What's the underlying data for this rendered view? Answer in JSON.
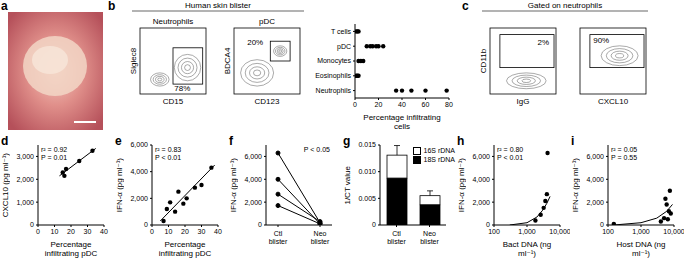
{
  "chart_data": [
    {
      "panel": "a",
      "type": "image"
    },
    {
      "panel": "b",
      "type": "flow_cytometry",
      "title": "Human skin blister",
      "plots": [
        {
          "title": "Neutrophils",
          "x_label": "CD15",
          "y_label": "Siglec8",
          "gate_label": "78%"
        },
        {
          "title": "pDC",
          "x_label": "CD123",
          "y_label": "BDCA4",
          "gate_label": "20%"
        }
      ]
    },
    {
      "type": "dot",
      "categories": [
        "T cells",
        "pDC",
        "Monocytes",
        "Eosinophils",
        "Neutrophils"
      ],
      "values": [
        [
          1,
          2,
          3
        ],
        [
          10,
          13,
          15,
          18,
          20,
          24
        ],
        [
          3,
          5,
          7
        ],
        [
          1,
          2,
          3
        ],
        [
          35,
          40,
          48,
          60,
          78
        ]
      ],
      "x_label": "Percentage infiltrating cells",
      "xlim": [
        0,
        80
      ],
      "xticks": [
        0,
        20,
        40,
        60,
        80
      ],
      "color": "#000000"
    },
    {
      "panel": "c",
      "type": "flow_cytometry",
      "title": "Gated on neutrophils",
      "plots": [
        {
          "x_label": "IgG",
          "y_label": "CD11b",
          "gate_label": "2%"
        },
        {
          "x_label": "CXCL10",
          "gate_label": "90%"
        }
      ]
    },
    {
      "panel": "d",
      "type": "scatter",
      "x_label": "Percentage infiltrating pDC",
      "y_label": "CXCL10 (pg ml⁻¹)",
      "x": [
        15,
        16,
        17,
        25,
        33
      ],
      "values": [
        2300,
        2150,
        2450,
        2800,
        3250
      ],
      "fit": {
        "x": [
          13,
          35
        ],
        "values": [
          2150,
          3350
        ]
      },
      "annotations": [
        "r² = 0.92",
        "P = 0.01"
      ],
      "xlim": [
        0,
        40
      ],
      "xticks": [
        0,
        10,
        20,
        30,
        40
      ],
      "ylim": [
        0,
        3500
      ],
      "yticks": [
        0,
        {
          "value": 1000,
          "label": "1,000"
        },
        {
          "value": 2000,
          "label": "2,000"
        },
        {
          "value": 3000,
          "label": "3,000"
        }
      ],
      "color": "#000000"
    },
    {
      "panel": "e",
      "type": "scatter",
      "x_label": "Percentage infiltrating pDC",
      "y_label": "IFN-α (pg ml⁻¹)",
      "x": [
        7,
        9,
        11,
        14,
        16,
        19,
        21,
        26,
        30,
        36
      ],
      "values": [
        300,
        1200,
        1700,
        1000,
        2500,
        1600,
        2000,
        2800,
        3000,
        4300
      ],
      "fit": {
        "x": [
          5,
          38
        ],
        "values": [
          300,
          4500
        ]
      },
      "annotations": [
        "r² = 0.83",
        "P < 0.01"
      ],
      "xlim": [
        0,
        40
      ],
      "xticks": [
        0,
        10,
        20,
        30,
        40
      ],
      "ylim": [
        0,
        6000
      ],
      "yticks": [
        0,
        {
          "value": 2000,
          "label": "2,000"
        },
        {
          "value": 4000,
          "label": "4,000"
        },
        {
          "value": 6000,
          "label": "6,000"
        }
      ],
      "color": "#000000"
    },
    {
      "panel": "f",
      "type": "line",
      "categories": [
        "Ctl blister",
        "Neo blister"
      ],
      "y_label": "IFN-α (pg ml⁻¹)",
      "series": [
        {
          "values": [
            6300,
            200
          ]
        },
        {
          "values": [
            4000,
            100
          ]
        },
        {
          "values": [
            2700,
            300
          ]
        },
        {
          "values": [
            1700,
            100
          ]
        }
      ],
      "annotations": [
        "P < 0.05"
      ],
      "ylim": [
        0,
        7000
      ],
      "yticks": [
        0,
        {
          "value": 2000,
          "label": "2,000"
        },
        {
          "value": 4000,
          "label": "4,000"
        },
        {
          "value": 6000,
          "label": "6,000"
        }
      ],
      "color": "#000000"
    },
    {
      "panel": "g",
      "type": "bar",
      "stacked": true,
      "categories": [
        "Ctl blister",
        "Neo blister"
      ],
      "y_label": "1/CT value",
      "series": [
        {
          "name": "18S rDNA",
          "color": "#000000",
          "values": [
            0.0088,
            0.0038
          ]
        },
        {
          "name": "16S rDNA",
          "color": "#ffffff",
          "values": [
            0.0043,
            0.0017
          ],
          "errors": [
            0.0018,
            0.0009
          ]
        }
      ],
      "ylim": [
        0,
        0.015
      ],
      "yticks": [
        0,
        0.005,
        {
          "value": 0.01,
          "label": "0.010"
        },
        0.015
      ],
      "legend": "top right"
    },
    {
      "panel": "h",
      "type": "scatter",
      "log": "x",
      "x_label": "Bact DNA (ng ml⁻¹)",
      "y_label": "IFN-α (pg ml⁻¹)",
      "x": [
        1800,
        2600,
        3200,
        3600,
        4000,
        4200
      ],
      "values": [
        400,
        900,
        1500,
        2100,
        2700,
        6300
      ],
      "fit": {
        "x": [
          300,
          1000,
          2000,
          3000,
          4000,
          5000
        ],
        "values": [
          0,
          200,
          700,
          1300,
          1900,
          2500
        ]
      },
      "annotations": [
        "r² = 0.80",
        "P < 0.01"
      ],
      "xlim": [
        100,
        10000
      ],
      "xticks": [
        100,
        {
          "value": 1000,
          "label": "1,000"
        },
        {
          "value": 10000,
          "label": "10,000"
        }
      ],
      "ylim": [
        0,
        7000
      ],
      "yticks": [
        0,
        {
          "value": 2000,
          "label": "2,000"
        },
        {
          "value": 4000,
          "label": "4,000"
        },
        {
          "value": 6000,
          "label": "6,000"
        }
      ],
      "color": "#000000"
    },
    {
      "panel": "i",
      "type": "scatter",
      "log": "x",
      "x_label": "Host DNA (ng ml⁻¹)",
      "y_label": "IFN-α (pg ml⁻¹)",
      "x": [
        150,
        4000,
        5000,
        5500,
        6000,
        6500,
        7000,
        7500,
        8000
      ],
      "values": [
        100,
        300,
        600,
        2300,
        1800,
        500,
        1200,
        3000,
        1000
      ],
      "fit": {
        "x": [
          150,
          1000,
          3000,
          6000,
          9000
        ],
        "values": [
          0,
          200,
          600,
          1200,
          1800
        ]
      },
      "annotations": [
        "r² = 0.05",
        "P = 0.55"
      ],
      "xlim": [
        100,
        10000
      ],
      "xticks": [
        100,
        {
          "value": 1000,
          "label": "1,000"
        },
        {
          "value": 10000,
          "label": "10,000"
        }
      ],
      "ylim": [
        0,
        7000
      ],
      "yticks": [
        0,
        {
          "value": 2000,
          "label": "2,000"
        },
        {
          "value": 4000,
          "label": "4,000"
        },
        {
          "value": 6000,
          "label": "6,000"
        }
      ],
      "color": "#000000"
    }
  ]
}
